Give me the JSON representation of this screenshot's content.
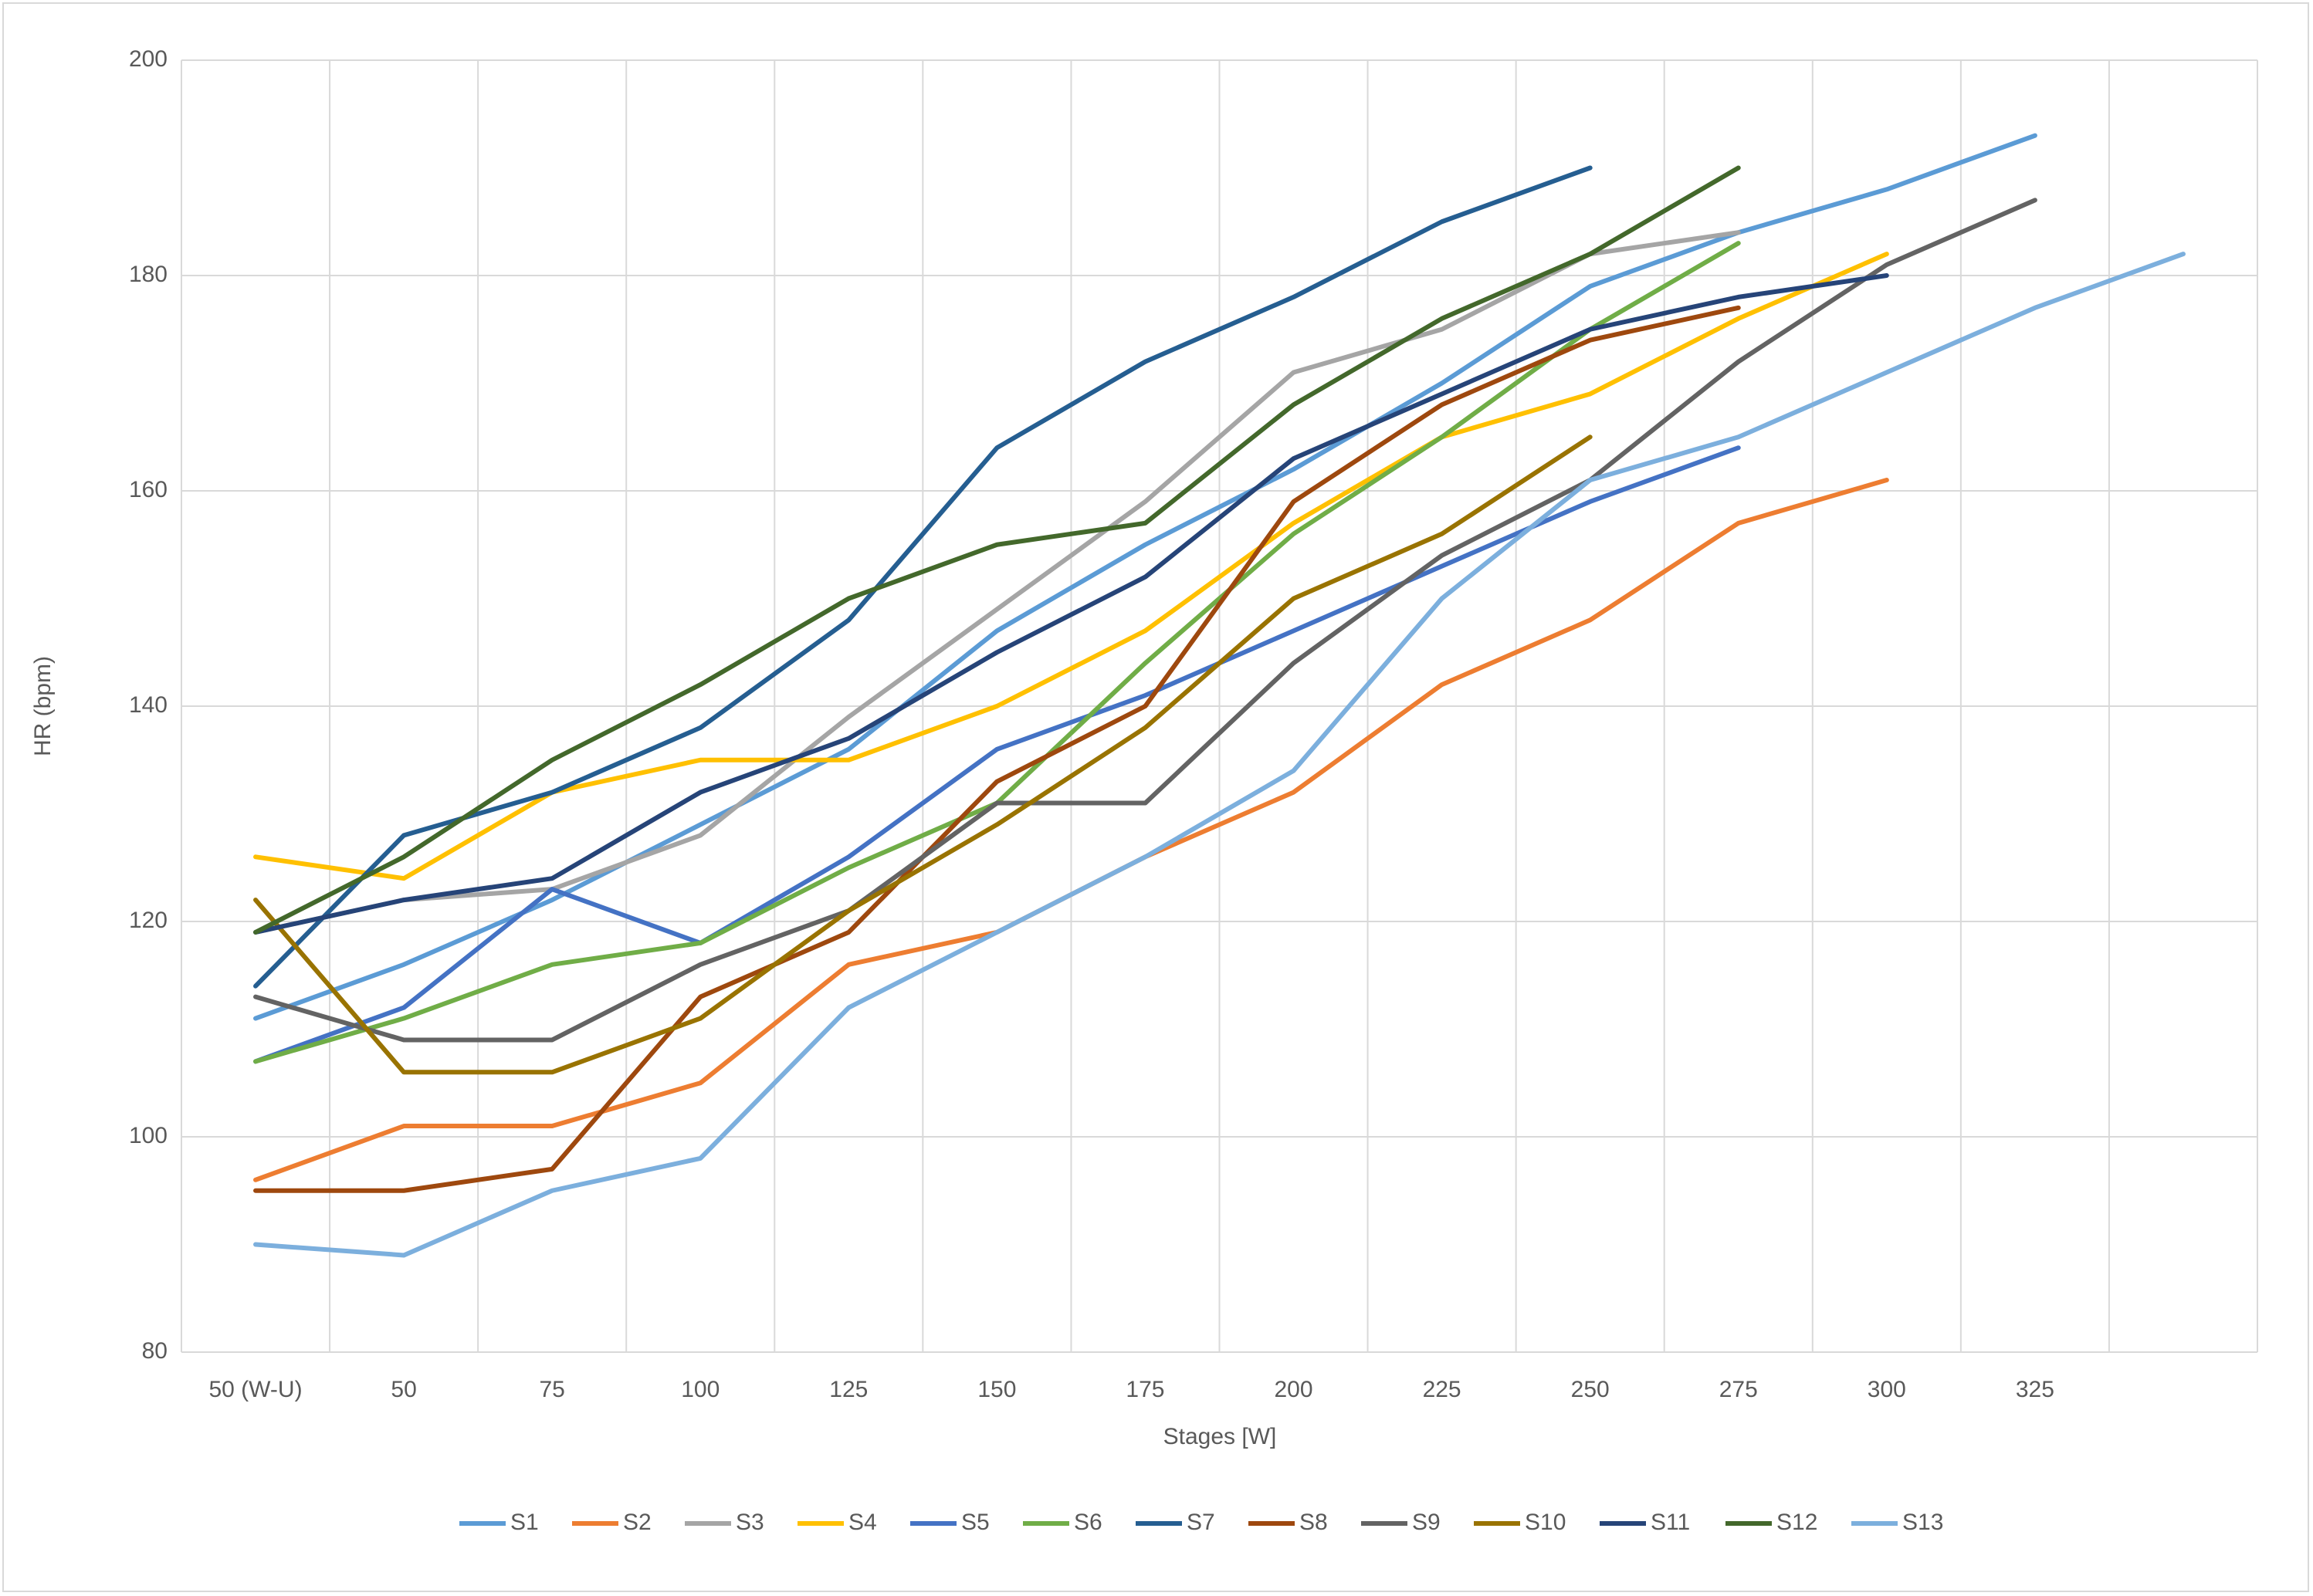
{
  "chart_data": {
    "type": "line",
    "x_label": "Stages [W]",
    "y_label": "HR (bpm)",
    "categories": [
      "50 (W-U)",
      "50",
      "75",
      "100",
      "125",
      "150",
      "175",
      "200",
      "225",
      "250",
      "275",
      "300",
      "325",
      null
    ],
    "ylim": [
      80,
      200
    ],
    "yticks": [
      80,
      100,
      120,
      140,
      160,
      180,
      200
    ],
    "grid": true,
    "legend": "bottom",
    "series": [
      {
        "name": "S1",
        "color": "#5b9bd5",
        "values": [
          111,
          116,
          122,
          129,
          136,
          147,
          155,
          162,
          170,
          179,
          184,
          188,
          193,
          null
        ]
      },
      {
        "name": "S2",
        "color": "#ed7d31",
        "values": [
          96,
          101,
          101,
          105,
          116,
          119,
          126,
          132,
          142,
          148,
          157,
          161,
          null,
          null
        ]
      },
      {
        "name": "S3",
        "color": "#a5a5a5",
        "values": [
          119,
          122,
          123,
          128,
          139,
          149,
          159,
          171,
          175,
          182,
          184,
          null,
          null,
          null
        ]
      },
      {
        "name": "S4",
        "color": "#ffc000",
        "values": [
          126,
          124,
          132,
          135,
          135,
          140,
          147,
          157,
          165,
          169,
          176,
          182,
          null,
          null
        ]
      },
      {
        "name": "S5",
        "color": "#4472c4",
        "values": [
          107,
          112,
          123,
          118,
          126,
          136,
          141,
          147,
          153,
          159,
          164,
          null,
          null,
          null
        ]
      },
      {
        "name": "S6",
        "color": "#70ad47",
        "values": [
          107,
          111,
          116,
          118,
          125,
          131,
          144,
          156,
          165,
          175,
          183,
          null,
          null,
          null
        ]
      },
      {
        "name": "S7",
        "color": "#255e91",
        "values": [
          114,
          128,
          132,
          138,
          148,
          164,
          172,
          178,
          185,
          190,
          null,
          null,
          null,
          null
        ]
      },
      {
        "name": "S8",
        "color": "#9e480e",
        "values": [
          95,
          95,
          97,
          113,
          119,
          133,
          140,
          159,
          168,
          174,
          177,
          null,
          null,
          null
        ]
      },
      {
        "name": "S9",
        "color": "#636363",
        "values": [
          113,
          109,
          109,
          116,
          121,
          131,
          131,
          144,
          154,
          161,
          172,
          181,
          187,
          null
        ]
      },
      {
        "name": "S10",
        "color": "#997300",
        "values": [
          122,
          106,
          106,
          111,
          121,
          129,
          138,
          150,
          156,
          165,
          null,
          null,
          null,
          null
        ]
      },
      {
        "name": "S11",
        "color": "#264478",
        "values": [
          119,
          122,
          124,
          132,
          137,
          145,
          152,
          163,
          169,
          175,
          178,
          180,
          null,
          null
        ]
      },
      {
        "name": "S12",
        "color": "#43682b",
        "values": [
          119,
          126,
          135,
          142,
          150,
          155,
          157,
          168,
          176,
          182,
          190,
          null,
          null,
          null
        ]
      },
      {
        "name": "S13",
        "color": "#7cafdd",
        "values": [
          90,
          89,
          95,
          98,
          112,
          119,
          126,
          134,
          150,
          161,
          165,
          171,
          177,
          182
        ]
      }
    ]
  }
}
